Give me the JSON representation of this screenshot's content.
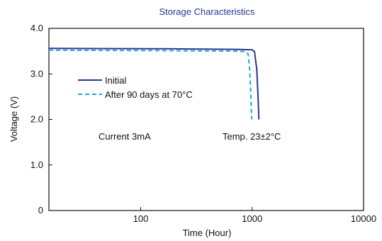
{
  "chart_data": {
    "type": "line",
    "title": "Storage Characteristics",
    "xlabel": "Time (Hour)",
    "ylabel": "Voltage (V)",
    "x_scale": "log",
    "xlim": [
      15,
      10000
    ],
    "ylim": [
      0,
      4.0
    ],
    "x_ticks": [
      100,
      1000,
      10000
    ],
    "x_tick_labels": [
      "100",
      "1000",
      "10000"
    ],
    "y_ticks": [
      0,
      1.0,
      2.0,
      3.0,
      4.0
    ],
    "y_tick_labels": [
      "0",
      "1.0",
      "2.0",
      "3.0",
      "4.0"
    ],
    "grid": false,
    "legend_position": "upper-left",
    "series": [
      {
        "name": "Initial",
        "color": "#2b3590",
        "dash": "solid",
        "points": [
          [
            15,
            3.56
          ],
          [
            200,
            3.55
          ],
          [
            700,
            3.54
          ],
          [
            1000,
            3.53
          ],
          [
            1050,
            3.49
          ],
          [
            1100,
            3.1
          ],
          [
            1130,
            2.5
          ],
          [
            1150,
            2.0
          ]
        ]
      },
      {
        "name": "After 90 days at 70°C",
        "color": "#1ea6e8",
        "dash": "dashed",
        "points": [
          [
            15,
            3.52
          ],
          [
            200,
            3.51
          ],
          [
            700,
            3.5
          ],
          [
            870,
            3.49
          ],
          [
            920,
            3.44
          ],
          [
            950,
            3.1
          ],
          [
            975,
            2.5
          ],
          [
            990,
            2.0
          ]
        ]
      }
    ],
    "annotations": [
      "Current 3mA",
      "Temp. 23±2°C"
    ],
    "title_color": "#2b3590"
  }
}
